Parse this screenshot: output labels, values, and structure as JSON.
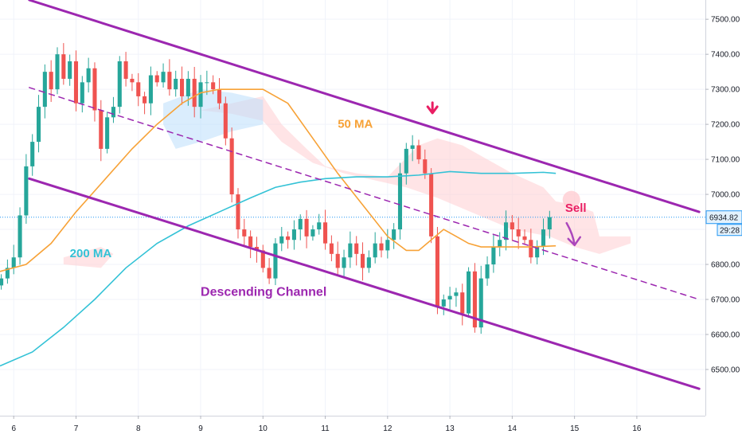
{
  "chart_data": {
    "type": "candlestick",
    "x_tick_labels": [
      "6",
      "7",
      "8",
      "9",
      "10",
      "11",
      "12",
      "13",
      "14",
      "15",
      "16"
    ],
    "x_ticks": [
      6,
      7,
      8,
      9,
      10,
      11,
      12,
      13,
      14,
      15,
      16
    ],
    "xlim": [
      5.78,
      17.1
    ],
    "y_ticks": [
      6500,
      6600,
      6700,
      6800,
      6900,
      7000,
      7100,
      7200,
      7300,
      7400,
      7500
    ],
    "y_tick_labels": [
      "6500.00",
      "6600.00",
      "6700.00",
      "6800.00",
      "",
      "7000.00",
      "7100.00",
      "7200.00",
      "7300.00",
      "7400.00",
      "7500.00"
    ],
    "ylim": [
      6368,
      7555
    ],
    "last_price": {
      "value": 6934.82,
      "label": "6934.82",
      "countdown": "29:28"
    },
    "grid": true,
    "colors": {
      "up": "#26a69a",
      "down": "#ef5350",
      "channel": "#9c27b0",
      "ma50": "#f7a237",
      "ma200": "#33c2d6",
      "cloud": "#ffcdd2",
      "cloud_bull": "#bbdefb",
      "price_line": "#2196f3"
    },
    "candles_close": [
      6760,
      6790,
      6820,
      6940,
      7080,
      7150,
      7250,
      7350,
      7300,
      7400,
      7330,
      7380,
      7260,
      7320,
      7360,
      7240,
      7130,
      7220,
      7250,
      7380,
      7330,
      7320,
      7280,
      7260,
      7340,
      7320,
      7350,
      7300,
      7330,
      7280,
      7330,
      7250,
      7320,
      7320,
      7300,
      7260,
      7160,
      7000,
      6900,
      6880,
      6850,
      6840,
      6790,
      6760,
      6860,
      6880,
      6870,
      6900,
      6930,
      6880,
      6900,
      6920,
      6860,
      6830,
      6790,
      6820,
      6860,
      6830,
      6790,
      6820,
      6860,
      6840,
      6870,
      6900,
      7060,
      7130,
      7140,
      7100,
      7060,
      6880,
      6680,
      6700,
      6710,
      6720,
      6660,
      6780,
      6620,
      6760,
      6800,
      6850,
      6870,
      6920,
      6900,
      6880,
      6870,
      6820,
      6850,
      6900,
      6935
    ],
    "series": [
      {
        "name": "50 MA",
        "x": [
          5.78,
          6.2,
          6.6,
          7.0,
          7.5,
          7.9,
          8.3,
          8.7,
          9.0,
          9.3,
          9.6,
          10.0,
          10.4,
          10.8,
          11.2,
          11.6,
          12.0,
          12.3,
          12.5,
          12.7,
          12.9,
          13.1,
          13.3,
          13.5,
          13.8,
          14.0,
          14.3,
          14.7
        ],
        "values": [
          6780,
          6800,
          6860,
          6950,
          7050,
          7130,
          7200,
          7260,
          7290,
          7300,
          7300,
          7300,
          7260,
          7160,
          7060,
          6970,
          6880,
          6840,
          6840,
          6870,
          6900,
          6880,
          6860,
          6850,
          6850,
          6850,
          6850,
          6853
        ]
      },
      {
        "name": "200 MA",
        "x": [
          5.78,
          6.3,
          6.8,
          7.3,
          7.8,
          8.3,
          8.8,
          9.3,
          9.8,
          10.2,
          10.6,
          11.0,
          11.5,
          12.0,
          12.5,
          13.0,
          13.5,
          14.0,
          14.5,
          14.7
        ],
        "values": [
          6510,
          6550,
          6620,
          6700,
          6790,
          6860,
          6910,
          6950,
          6990,
          7020,
          7035,
          7045,
          7050,
          7050,
          7055,
          7065,
          7060,
          7060,
          7063,
          7060
        ]
      }
    ],
    "channel_lines": [
      {
        "name": "upper",
        "x": [
          6.25,
          17.0
        ],
        "values": [
          7555,
          6950
        ]
      },
      {
        "name": "lower",
        "x": [
          6.25,
          17.0
        ],
        "values": [
          7045,
          6445
        ]
      },
      {
        "name": "middle",
        "x": [
          6.25,
          17.0
        ],
        "values": [
          7305,
          6700
        ]
      }
    ],
    "annotations": [
      {
        "text": "50 MA",
        "x": 11.2,
        "y": 7190,
        "color": "#f7a237"
      },
      {
        "text": "200 MA",
        "x": 6.9,
        "y": 6820,
        "color": "#33c2d6"
      },
      {
        "text": "Descending Channel",
        "x": 9.0,
        "y": 6710,
        "color": "#9c27b0"
      },
      {
        "text": "Sell",
        "x": 14.85,
        "y": 6950,
        "color": "#e91e63"
      }
    ]
  }
}
